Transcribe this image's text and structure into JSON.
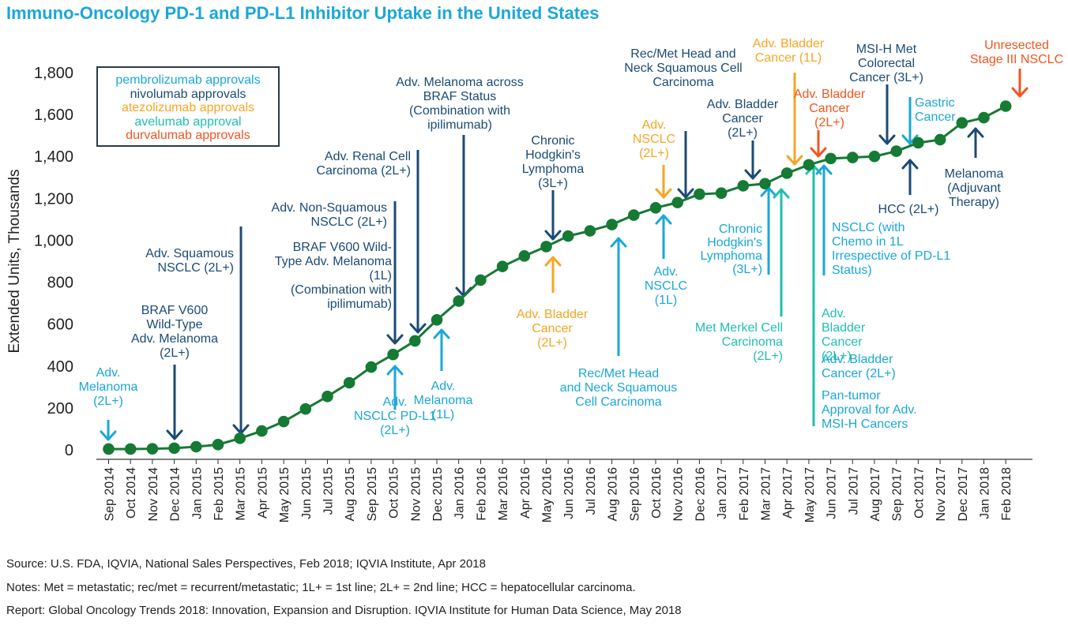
{
  "title": "Immuno-Oncology PD-1 and PD-L1 Inhibitor Uptake in the United States",
  "colors": {
    "title": "#1aa7d9",
    "line": "#157a33",
    "pembrolizumab": "#1aa7d9",
    "nivolumab": "#1b4b75",
    "atezolizumab": "#f5a623",
    "avelumab": "#1fbfb0",
    "durvalumab": "#f2551f"
  },
  "legend": [
    {
      "label": "pembrolizumab approvals",
      "drug": "pembrolizumab"
    },
    {
      "label": "nivolumab approvals",
      "drug": "nivolumab"
    },
    {
      "label": "atezolizumab approvals",
      "drug": "atezolizumab"
    },
    {
      "label": "avelumab approval",
      "drug": "avelumab"
    },
    {
      "label": "durvalumab approvals",
      "drug": "durvalumab"
    }
  ],
  "chart_data": {
    "type": "line",
    "ylabel": "Extended Units, Thousands",
    "xlabel": "",
    "ylim": [
      0,
      1800
    ],
    "yticks": [
      0,
      200,
      400,
      600,
      800,
      "1,000",
      "1,200",
      "1,400",
      "1,600",
      "1,800"
    ],
    "categories": [
      "Sep 2014",
      "Oct 2014",
      "Nov 2014",
      "Dec 2014",
      "Jan 2015",
      "Feb 2015",
      "Mar 2015",
      "Apr 2015",
      "May 2015",
      "Jun 2015",
      "Jul 2015",
      "Aug 2015",
      "Sep 2015",
      "Oct 2015",
      "Nov 2015",
      "Dec 2015",
      "Jan 2016",
      "Feb 2016",
      "Mar 2016",
      "Apr 2016",
      "May 2016",
      "Jun 2016",
      "Jul 2016",
      "Aug 2016",
      "Sep 2016",
      "Oct 2016",
      "Nov 2016",
      "Dec 2016",
      "Jan 2017",
      "Feb 2017",
      "Mar 2017",
      "Apr 2017",
      "May 2017",
      "Jun 2017",
      "Jul 2017",
      "Aug 2017",
      "Sep 2017",
      "Oct 2017",
      "Nov 2017",
      "Dec 2017",
      "Jan 2018",
      "Feb 2018"
    ],
    "values": [
      4,
      4,
      5,
      8,
      15,
      25,
      55,
      90,
      135,
      195,
      255,
      320,
      395,
      455,
      520,
      620,
      710,
      810,
      875,
      925,
      970,
      1020,
      1045,
      1075,
      1120,
      1155,
      1180,
      1220,
      1225,
      1260,
      1270,
      1320,
      1360,
      1390,
      1395,
      1400,
      1425,
      1465,
      1480,
      1560,
      1585,
      1640
    ],
    "annotations": [
      {
        "id": "a1",
        "lines": [
          "Adv.",
          "Melanoma",
          "(2L+)"
        ],
        "drug": "pembrolizumab"
      },
      {
        "id": "a2",
        "lines": [
          "BRAF V600",
          "Wild-Type",
          "Adv. Melanoma",
          "(2L+)"
        ],
        "drug": "nivolumab"
      },
      {
        "id": "a3",
        "lines": [
          "Adv. Squamous",
          "NSCLC (2L+)"
        ],
        "drug": "nivolumab"
      },
      {
        "id": "a4",
        "lines": [
          "Adv. Non-Squamous",
          "NSCLC (2L+)"
        ],
        "drug": "nivolumab"
      },
      {
        "id": "a5",
        "lines": [
          "BRAF V600 Wild-",
          "Type Adv. Melanoma",
          "(1L)",
          "(Combination with",
          "ipilimumab)"
        ],
        "drug": "nivolumab"
      },
      {
        "id": "a6",
        "lines": [
          "Adv.",
          "NSCLC PD-L1",
          "(2L+)"
        ],
        "drug": "pembrolizumab"
      },
      {
        "id": "a7",
        "lines": [
          "Adv. Renal Cell",
          "Carcinoma (2L+)"
        ],
        "drug": "nivolumab"
      },
      {
        "id": "a8",
        "lines": [
          "Adv.",
          "Melanoma",
          "(1L)"
        ],
        "drug": "pembrolizumab"
      },
      {
        "id": "a9",
        "lines": [
          "Adv. Melanoma across",
          "BRAF Status",
          "(Combination with",
          "ipilimumab)"
        ],
        "drug": "nivolumab"
      },
      {
        "id": "a10",
        "lines": [
          "Chronic",
          "Hodgkin's",
          "Lymphoma",
          "(3L+)"
        ],
        "drug": "nivolumab"
      },
      {
        "id": "a11",
        "lines": [
          "Adv. Bladder",
          "Cancer",
          "(2L+)"
        ],
        "drug": "atezolizumab"
      },
      {
        "id": "a12",
        "lines": [
          "Rec/Met Head",
          "and Neck Squamous",
          "Cell Carcinoma"
        ],
        "drug": "pembrolizumab"
      },
      {
        "id": "a13",
        "lines": [
          "Adv.",
          "NSCLC",
          "(2L+)"
        ],
        "drug": "atezolizumab"
      },
      {
        "id": "a14",
        "lines": [
          "Adv.",
          "NSCLC",
          "(1L)"
        ],
        "drug": "pembrolizumab"
      },
      {
        "id": "a15",
        "lines": [
          "Rec/Met Head and",
          "Neck Squamous Cell",
          "Carcinoma"
        ],
        "drug": "nivolumab"
      },
      {
        "id": "a16",
        "lines": [
          "Adv. Bladder",
          "Cancer",
          "(2L+)"
        ],
        "drug": "nivolumab"
      },
      {
        "id": "a17",
        "lines": [
          "Chronic",
          "Hodgkin's",
          "Lymphoma",
          "(3L+)"
        ],
        "drug": "pembrolizumab"
      },
      {
        "id": "a18",
        "lines": [
          "Met Merkel Cell",
          "Carcinoma",
          "(2L+)"
        ],
        "drug": "avelumab"
      },
      {
        "id": "a19",
        "lines": [
          "Adv. Bladder",
          "Cancer (1L)"
        ],
        "drug": "atezolizumab"
      },
      {
        "id": "a20",
        "lines": [
          "Adv. Bladder",
          "Cancer",
          "(2L+)"
        ],
        "drug": "durvalumab"
      },
      {
        "id": "a21",
        "lines": [
          "Adv.",
          "Bladder",
          "Cancer",
          "(2L+)"
        ],
        "drug": "avelumab"
      },
      {
        "id": "a22",
        "lines": [
          "NSCLC (with",
          "Chemo in 1L",
          "Irrespective of PD-L1",
          "Status)"
        ],
        "drug": "pembrolizumab"
      },
      {
        "id": "a23",
        "lines": [
          "Adv. Bladder",
          "Cancer (2L+)"
        ],
        "drug": "pembrolizumab"
      },
      {
        "id": "a24",
        "lines": [
          "Pan-tumor",
          "Approval for Adv.",
          "MSI-H Cancers"
        ],
        "drug": "pembrolizumab"
      },
      {
        "id": "a25",
        "lines": [
          "MSI-H Met",
          "Colorectal",
          "Cancer (3L+)"
        ],
        "drug": "nivolumab"
      },
      {
        "id": "a26",
        "lines": [
          "Gastric",
          "Cancer"
        ],
        "drug": "pembrolizumab"
      },
      {
        "id": "a27",
        "lines": [
          "HCC (2L+)"
        ],
        "drug": "nivolumab"
      },
      {
        "id": "a28",
        "lines": [
          "Melanoma",
          "(Adjuvant",
          "Therapy)"
        ],
        "drug": "nivolumab"
      },
      {
        "id": "a29",
        "lines": [
          "Unresected",
          "Stage III NSCLC"
        ],
        "drug": "durvalumab"
      }
    ]
  },
  "footnotes": {
    "source": "Source: U.S. FDA, IQVIA, National Sales Perspectives, Feb 2018; IQVIA Institute, Apr 2018",
    "notes": "Notes: Met = metastatic; rec/met = recurrent/metastatic; 1L+ = 1st line; 2L+ = 2nd line; HCC = hepatocellular carcinoma.",
    "report": "Report: Global Oncology Trends 2018: Innovation, Expansion and Disruption. IQVIA Institute for Human Data Science, May 2018"
  }
}
